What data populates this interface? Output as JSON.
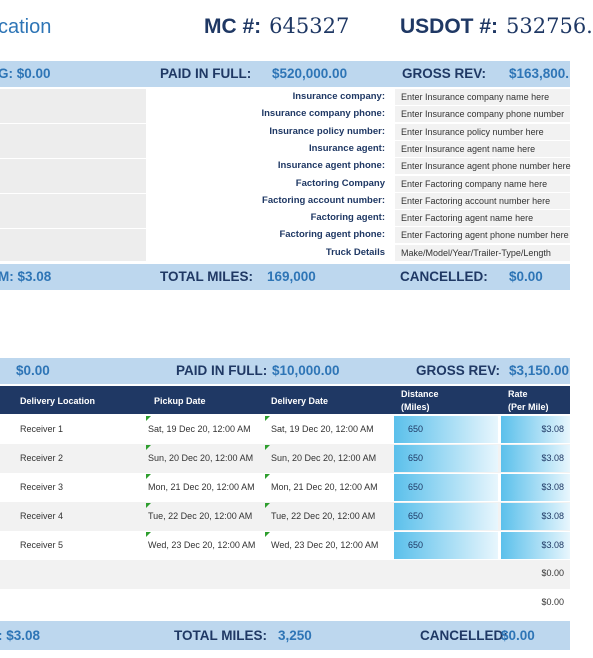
{
  "header": {
    "title": "cation",
    "mc_label": "MC #:",
    "mc_value": "645327",
    "usdot_label": "USDOT #:",
    "usdot_value": "532756."
  },
  "band1": {
    "left": "G: $0.00",
    "paid_label": "PAID IN FULL:",
    "paid_value": "$520,000.00",
    "gross_label": "GROSS REV:",
    "gross_value": "$163,800."
  },
  "insurance": [
    {
      "label": "Insurance company:",
      "value": "Enter Insurance company name here"
    },
    {
      "label": "Insurance company phone:",
      "value": "Enter Insurance company phone number"
    },
    {
      "label": "Insurance policy number:",
      "value": "Enter Insurance policy number here"
    },
    {
      "label": "Insurance agent:",
      "value": "Enter Insurance agent name here"
    },
    {
      "label": "Insurance agent phone:",
      "value": "Enter Insurance agent phone number here"
    },
    {
      "label": "Factoring Company",
      "value": "Enter Factoring company name here"
    },
    {
      "label": "Factoring account number:",
      "value": "Enter Factoring account number here"
    },
    {
      "label": "Factoring agent:",
      "value": "Enter Factoring agent name here"
    },
    {
      "label": "Factoring agent phone:",
      "value": "Enter Factoring agent phone number here"
    },
    {
      "label": "Truck  Details",
      "value": "Make/Model/Year/Trailer-Type/Length"
    }
  ],
  "band2": {
    "left": "M: $3.08",
    "miles_label": "TOTAL MILES:",
    "miles_value": "169,000",
    "cancel_label": "CANCELLED:",
    "cancel_value": "$0.00"
  },
  "band3": {
    "left": "$0.00",
    "paid_label": "PAID IN FULL:",
    "paid_value": "$10,000.00",
    "gross_label": "GROSS REV:",
    "gross_value": "$3,150.00"
  },
  "table": {
    "headers": {
      "delivery_location": "Delivery Location",
      "pickup_date": "Pickup Date",
      "delivery_date": "Delivery Date",
      "distance_1": "Distance",
      "distance_2": "(Miles)",
      "rate_1": "Rate",
      "rate_2": "(Per Mile)"
    },
    "rows": [
      {
        "loc": "Receiver 1",
        "pickup": "Sat, 19 Dec 20, 12:00 AM",
        "delivery": "Sat, 19 Dec 20, 12:00 AM",
        "dist": "650",
        "rate": "$3.08"
      },
      {
        "loc": "Receiver 2",
        "pickup": "Sun, 20 Dec 20, 12:00 AM",
        "delivery": "Sun, 20 Dec 20, 12:00 AM",
        "dist": "650",
        "rate": "$3.08"
      },
      {
        "loc": "Receiver 3",
        "pickup": "Mon, 21 Dec 20, 12:00 AM",
        "delivery": "Mon, 21 Dec 20, 12:00 AM",
        "dist": "650",
        "rate": "$3.08"
      },
      {
        "loc": "Receiver 4",
        "pickup": "Tue, 22 Dec 20, 12:00 AM",
        "delivery": "Tue, 22 Dec 20, 12:00 AM",
        "dist": "650",
        "rate": "$3.08"
      },
      {
        "loc": "Receiver 5",
        "pickup": "Wed, 23 Dec 20, 12:00 AM",
        "delivery": "Wed, 23 Dec 20, 12:00 AM",
        "dist": "650",
        "rate": "$3.08"
      }
    ],
    "empty_rows": [
      {
        "rate": "$0.00"
      },
      {
        "rate": "$0.00"
      }
    ]
  },
  "band4": {
    "left": ": $3.08",
    "miles_label": "TOTAL MILES:",
    "miles_value": "3,250",
    "cancel_label": "CANCELLED:",
    "cancel_value": "$0.00"
  }
}
